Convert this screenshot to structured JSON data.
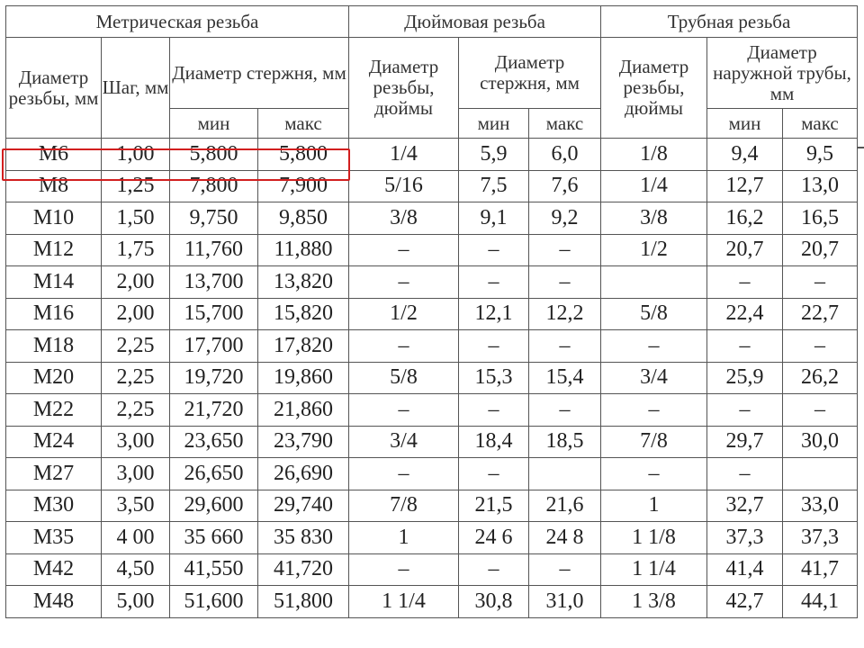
{
  "groups": {
    "metric": "Метрическая резьба",
    "inch": "Дюймовая резьба",
    "pipe": "Трубная резьба"
  },
  "sub": {
    "metric_diam": "Диаметр резьбы, мм",
    "pitch": "Шаг, мм",
    "rod_diam_mm": "Диаметр стержня, мм",
    "inch_diam": "Диаметр резьбы, дюймы",
    "inch_rod_diam": "Диаметр стержня, мм",
    "pipe_diam": "Диаметр резьбы, дюймы",
    "pipe_outer": "Диаметр наружной трубы, мм"
  },
  "minmax": {
    "min": "мин",
    "max": "макс"
  },
  "highlight_color": "#d21f1f",
  "rows": [
    [
      "M6",
      "1,00",
      "5,800",
      "5,800",
      "1/4",
      "5,9",
      "6,0",
      "1/8",
      "9,4",
      "9,5"
    ],
    [
      "M8",
      "1,25",
      "7,800",
      "7,900",
      "5/16",
      "7,5",
      "7,6",
      "1/4",
      "12,7",
      "13,0"
    ],
    [
      "M10",
      "1,50",
      "9,750",
      "9,850",
      "3/8",
      "9,1",
      "9,2",
      "3/8",
      "16,2",
      "16,5"
    ],
    [
      "M12",
      "1,75",
      "11,760",
      "11,880",
      "–",
      "–",
      "–",
      "1/2",
      "20,7",
      "20,7"
    ],
    [
      "M14",
      "2,00",
      "13,700",
      "13,820",
      "–",
      "–",
      "–",
      "",
      "–",
      "–"
    ],
    [
      "M16",
      "2,00",
      "15,700",
      "15,820",
      "1/2",
      "12,1",
      "12,2",
      "5/8",
      "22,4",
      "22,7"
    ],
    [
      "M18",
      "2,25",
      "17,700",
      "17,820",
      "–",
      "–",
      "–",
      "–",
      "–",
      "–"
    ],
    [
      "M20",
      "2,25",
      "19,720",
      "19,860",
      "5/8",
      "15,3",
      "15,4",
      "3/4",
      "25,9",
      "26,2"
    ],
    [
      "M22",
      "2,25",
      "21,720",
      "21,860",
      "–",
      "–",
      "–",
      "–",
      "–",
      "–"
    ],
    [
      "M24",
      "3,00",
      "23,650",
      "23,790",
      "3/4",
      "18,4",
      "18,5",
      "7/8",
      "29,7",
      "30,0"
    ],
    [
      "M27",
      "3,00",
      "26,650",
      "26,690",
      "–",
      "–",
      "",
      "–",
      "–",
      ""
    ],
    [
      "M30",
      "3,50",
      "29,600",
      "29,740",
      "7/8",
      "21,5",
      "21,6",
      "1",
      "32,7",
      "33,0"
    ],
    [
      "M35",
      "4 00",
      "35 660",
      "35 830",
      "1",
      "24 6",
      "24 8",
      "1 1/8",
      "37,3",
      "37,3"
    ],
    [
      "M42",
      "4,50",
      "41,550",
      "41,720",
      "–",
      "–",
      "–",
      "1 1/4",
      "41,4",
      "41,7"
    ],
    [
      "M48",
      "5,00",
      "51,600",
      "51,800",
      "1 1/4",
      "30,8",
      "31,0",
      "1 3/8",
      "42,7",
      "44,1"
    ]
  ]
}
